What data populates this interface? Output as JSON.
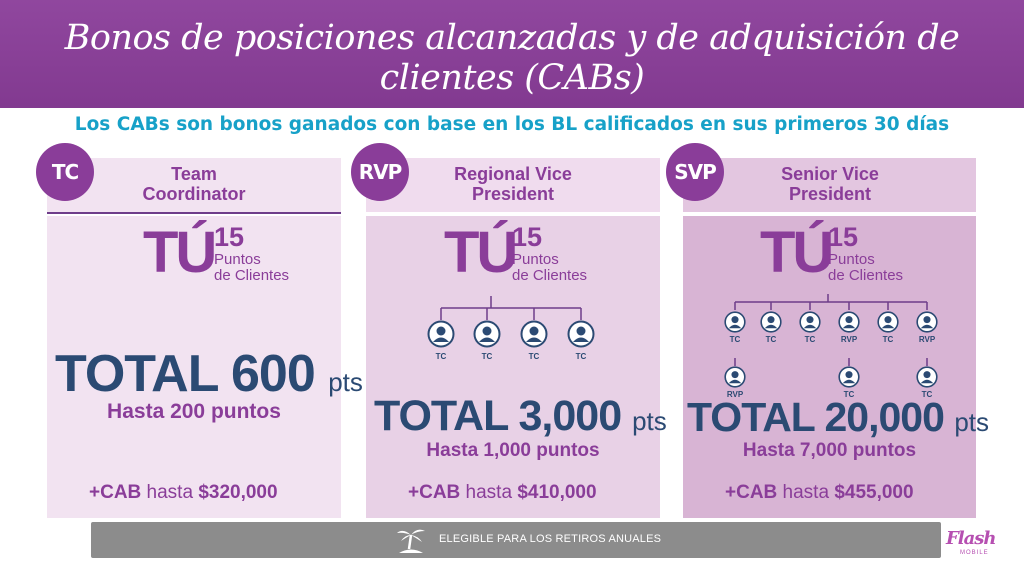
{
  "header": {
    "title": "Bonos de posiciones alcanzadas y de adquisición de clientes (CABs)",
    "subtitle": "Los CABs son bonos ganados con base en los BL calificados en sus primeros 30 días"
  },
  "colors": {
    "brand_purple": "#8a3d99",
    "navy": "#2b4a73",
    "teal": "#17a1c8"
  },
  "cards": [
    {
      "badge": "TC",
      "role_line1": "Team",
      "role_line2": "Coordinator",
      "tu": "TÚ",
      "points_num": "15",
      "points_l1": "Puntos",
      "points_l2": "de Clientes",
      "total": "TOTAL 600",
      "pts": "pts",
      "hasta": "Hasta 200 puntos",
      "cab_prefix": "+CAB",
      "cab_mid": "hasta",
      "cab_amount": "$320,000"
    },
    {
      "badge": "RVP",
      "role_line1": "Regional Vice",
      "role_line2": "President",
      "tu": "TÚ",
      "points_num": "15",
      "points_l1": "Puntos",
      "points_l2": "de Clientes",
      "tree_labels": [
        "TC",
        "TC",
        "TC",
        "TC"
      ],
      "total": "TOTAL 3,000",
      "pts": "pts",
      "hasta": "Hasta 1,000 puntos",
      "cab_prefix": "+CAB",
      "cab_mid": "hasta",
      "cab_amount": "$410,000"
    },
    {
      "badge": "SVP",
      "role_line1": "Senior Vice",
      "role_line2": "President",
      "tu": "TÚ",
      "points_num": "15",
      "points_l1": "Puntos",
      "points_l2": "de Clientes",
      "tree_labels": [
        "TC",
        "TC",
        "TC",
        "RVP",
        "TC",
        "RVP"
      ],
      "tree_sub_labels": [
        "RVP",
        "TC",
        "TC"
      ],
      "total": "TOTAL 20,000",
      "pts": "pts",
      "hasta": "Hasta 7,000 puntos",
      "cab_prefix": "+CAB",
      "cab_mid": "hasta",
      "cab_amount": "$455,000"
    }
  ],
  "footer": {
    "text": "ELEGIBLE PARA LOS RETIROS ANUALES",
    "icon": "palm-tree-icon"
  },
  "logo": {
    "text": "Flash",
    "sub": "MOBILE"
  }
}
